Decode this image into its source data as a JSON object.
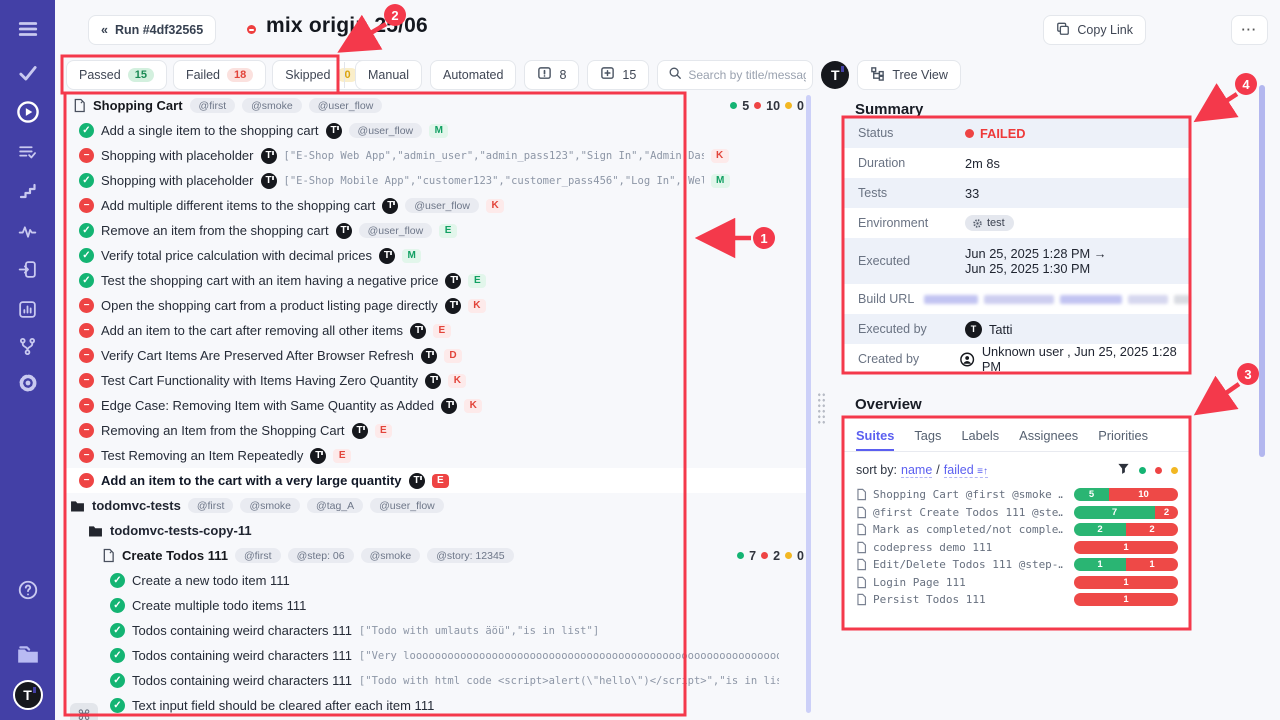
{
  "header": {
    "back_label": "Run #4df32565",
    "title": "mix origin 25/06",
    "copy_link_label": "Copy Link",
    "more_label": "···"
  },
  "toolbar": {
    "filters": [
      {
        "label": "Passed",
        "count": "15",
        "color": "green"
      },
      {
        "label": "Failed",
        "count": "18",
        "color": "red"
      },
      {
        "label": "Skipped",
        "count": "0",
        "color": "yellow"
      }
    ],
    "manual_label": "Manual",
    "automated_label": "Automated",
    "comments_count": "8",
    "notes_count": "15",
    "search_placeholder": "Search by title/message",
    "tree_view_label": "Tree View"
  },
  "test_tree": [
    {
      "type": "suite",
      "depth": 0,
      "title": "Shopping Cart",
      "tags": [
        "@first",
        "@smoke",
        "@user_flow"
      ],
      "counts": {
        "passed": "5",
        "failed": "10",
        "skipped": "0"
      }
    },
    {
      "type": "test",
      "depth": 1,
      "status": "passed",
      "title": "Add a single item to the shopping cart",
      "automated": true,
      "tags": [
        "@user_flow"
      ],
      "badge": "M"
    },
    {
      "type": "test",
      "depth": 1,
      "status": "failed",
      "title": "Shopping with placeholder",
      "automated": true,
      "code": "[\"E-Shop Web App\",\"admin_user\",\"admin_pass123\",\"Sign In\",\"Admin Dash…",
      "badge": "K"
    },
    {
      "type": "test",
      "depth": 1,
      "status": "passed",
      "title": "Shopping with placeholder",
      "automated": true,
      "code": "[\"E-Shop Mobile App\",\"customer123\",\"customer_pass456\",\"Log In\",\"Welc…",
      "badge": "M"
    },
    {
      "type": "test",
      "depth": 1,
      "status": "failed",
      "title": "Add multiple different items to the shopping cart",
      "automated": true,
      "tags": [
        "@user_flow"
      ],
      "badge": "K"
    },
    {
      "type": "test",
      "depth": 1,
      "status": "passed",
      "title": "Remove an item from the shopping cart",
      "automated": true,
      "tags": [
        "@user_flow"
      ],
      "badge": "E"
    },
    {
      "type": "test",
      "depth": 1,
      "status": "passed",
      "title": "Verify total price calculation with decimal prices",
      "automated": true,
      "badge": "M"
    },
    {
      "type": "test",
      "depth": 1,
      "status": "passed",
      "title": "Test the shopping cart with an item having a negative price",
      "automated": true,
      "badge": "E"
    },
    {
      "type": "test",
      "depth": 1,
      "status": "failed",
      "title": "Open the shopping cart from a product listing page directly",
      "automated": true,
      "badge": "K"
    },
    {
      "type": "test",
      "depth": 1,
      "status": "failed",
      "title": "Add an item to the cart after removing all other items",
      "automated": true,
      "badge": "E"
    },
    {
      "type": "test",
      "depth": 1,
      "status": "failed",
      "title": "Verify Cart Items Are Preserved After Browser Refresh",
      "automated": true,
      "badge": "D"
    },
    {
      "type": "test",
      "depth": 1,
      "status": "failed",
      "title": "Test Cart Functionality with Items Having Zero Quantity",
      "automated": true,
      "badge": "K"
    },
    {
      "type": "test",
      "depth": 1,
      "status": "failed",
      "title": "Edge Case: Removing Item with Same Quantity as Added",
      "automated": true,
      "badge": "K"
    },
    {
      "type": "test",
      "depth": 1,
      "status": "failed",
      "title": "Removing an Item from the Shopping Cart",
      "automated": true,
      "badge": "E"
    },
    {
      "type": "test",
      "depth": 1,
      "status": "failed",
      "title": "Test Removing an Item Repeatedly",
      "automated": true,
      "badge": "E"
    },
    {
      "type": "test",
      "depth": 1,
      "status": "failed",
      "title": "Add an item to the cart with a very large quantity",
      "automated": true,
      "badge": "E",
      "selected": true
    },
    {
      "type": "folder",
      "depth": 0,
      "title": "todomvc-tests",
      "tags": [
        "@first",
        "@smoke",
        "@tag_A",
        "@user_flow"
      ]
    },
    {
      "type": "folder",
      "depth": 1,
      "title": "todomvc-tests-copy-11"
    },
    {
      "type": "suite",
      "depth": 2,
      "title": "Create Todos 111",
      "tags": [
        "@first",
        "@step: 06",
        "@smoke",
        "@story: 12345"
      ],
      "counts": {
        "passed": "7",
        "failed": "2",
        "skipped": "0"
      }
    },
    {
      "type": "test",
      "depth": 3,
      "status": "passed",
      "title": "Create a new todo item 111"
    },
    {
      "type": "test",
      "depth": 3,
      "status": "passed",
      "title": "Create multiple todo items 111"
    },
    {
      "type": "test",
      "depth": 3,
      "status": "passed",
      "title": "Todos containing weird characters 111",
      "code": "[\"Todo with umlauts äöü\",\"is in list\"]"
    },
    {
      "type": "test",
      "depth": 3,
      "status": "passed",
      "title": "Todos containing weird characters 111",
      "code": "[\"Very loooooooooooooooooooooooooooooooooooooooooooooooooooooooooooooooo…"
    },
    {
      "type": "test",
      "depth": 3,
      "status": "passed",
      "title": "Todos containing weird characters 111",
      "code": "[\"Todo with html code <script>alert(\\\"hello\\\")</script>\",\"is in list…"
    },
    {
      "type": "test",
      "depth": 3,
      "status": "passed",
      "title": "Text input field should be cleared after each item 111"
    }
  ],
  "summary": {
    "heading": "Summary",
    "rows": [
      {
        "label": "Status",
        "type": "status",
        "value": "FAILED"
      },
      {
        "label": "Duration",
        "type": "text",
        "value": "2m 8s"
      },
      {
        "label": "Tests",
        "type": "text",
        "value": "33"
      },
      {
        "label": "Environment",
        "type": "env",
        "value": "test"
      },
      {
        "label": "Executed",
        "type": "twoline",
        "value": "Jun 25, 2025 1:28 PM →",
        "value2": "Jun 25, 2025 1:30 PM"
      },
      {
        "label": "Build URL",
        "type": "redacted"
      },
      {
        "label": "Executed by",
        "type": "avatar",
        "value": "Tatti"
      },
      {
        "label": "Created by",
        "type": "user",
        "value": "Unknown user , Jun 25, 2025 1:28 PM"
      }
    ]
  },
  "overview": {
    "heading": "Overview",
    "tabs": [
      "Suites",
      "Tags",
      "Labels",
      "Assignees",
      "Priorities"
    ],
    "active_tab": "Suites",
    "sort_label": "sort by:",
    "sort_name": "name",
    "sort_failed": "failed",
    "suites": [
      {
        "name": "Shopping Cart @first @smoke …",
        "passed": 5,
        "failed": 10
      },
      {
        "name": "@first Create Todos 111 @ste…",
        "passed": 7,
        "failed": 2
      },
      {
        "name": "Mark as completed/not comple…",
        "passed": 2,
        "failed": 2
      },
      {
        "name": "codepress demo 111",
        "passed": 0,
        "failed": 1
      },
      {
        "name": "Edit/Delete Todos 111 @step-…",
        "passed": 1,
        "failed": 1
      },
      {
        "name": "Login Page 111",
        "passed": 0,
        "failed": 1
      },
      {
        "name": "Persist Todos 111",
        "passed": 0,
        "failed": 1
      }
    ]
  },
  "annotations": [
    "1",
    "2",
    "3",
    "4"
  ],
  "footer": {
    "shortcut_key": "⌘"
  },
  "colors": {
    "passed": "#14b473",
    "failed": "#ee4444",
    "skipped": "#f2b722",
    "annotation": "#f4394b",
    "accent": "#5b5ff0",
    "sidebar": "#4340a6"
  }
}
